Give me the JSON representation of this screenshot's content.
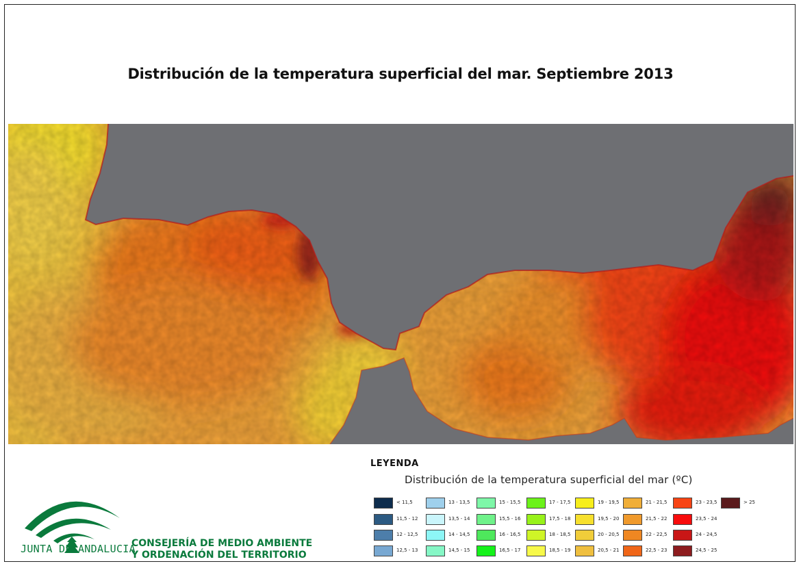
{
  "title": "Distribución de la temperatura superficial del mar. Septiembre 2013",
  "map": {
    "land_color": "#6e6f73",
    "layer": "temperatura superficial del mar",
    "unit": "ºC"
  },
  "legend": {
    "heading": "LEYENDA",
    "subtitle": "Distribución de la temperatura superficial del mar",
    "unit_label": "(ºC)",
    "classes": [
      {
        "label": "< 11,5",
        "color": "#0e2d4d"
      },
      {
        "label": "11,5 - 12",
        "color": "#2c5a82"
      },
      {
        "label": "12 - 12,5",
        "color": "#4d7eaa"
      },
      {
        "label": "12,5 - 13",
        "color": "#78a8d2"
      },
      {
        "label": "13 - 13,5",
        "color": "#9fd0ec"
      },
      {
        "label": "13,5 - 14",
        "color": "#caf5fb"
      },
      {
        "label": "14 - 14,5",
        "color": "#8df6f6"
      },
      {
        "label": "14,5 - 15",
        "color": "#86f7c6"
      },
      {
        "label": "15 - 15,5",
        "color": "#7ef7a8"
      },
      {
        "label": "15,5 - 16",
        "color": "#6ff28a"
      },
      {
        "label": "16 - 16,5",
        "color": "#4ee85c"
      },
      {
        "label": "16,5 - 17",
        "color": "#15f21a"
      },
      {
        "label": "17 - 17,5",
        "color": "#6cf21a"
      },
      {
        "label": "17,5 - 18",
        "color": "#98f21a"
      },
      {
        "label": "18 - 18,5",
        "color": "#cff527"
      },
      {
        "label": "18,5 - 19",
        "color": "#f7f94a"
      },
      {
        "label": "19 - 19,5",
        "color": "#f7ee1c"
      },
      {
        "label": "19,5 - 20",
        "color": "#f7e02e"
      },
      {
        "label": "20 - 20,5",
        "color": "#f1cd3a"
      },
      {
        "label": "20,5 - 21",
        "color": "#efbf3f"
      },
      {
        "label": "21 - 21,5",
        "color": "#f0ae38"
      },
      {
        "label": "21,5 - 22",
        "color": "#f09a2c"
      },
      {
        "label": "22 - 22,5",
        "color": "#ef8722"
      },
      {
        "label": "22,5 - 23",
        "color": "#f06618"
      },
      {
        "label": "23 - 23,5",
        "color": "#f74414"
      },
      {
        "label": "23,5 - 24",
        "color": "#f80c0c"
      },
      {
        "label": "24 - 24,5",
        "color": "#c91616"
      },
      {
        "label": "24,5 - 25",
        "color": "#8d1c1f"
      },
      {
        "label": "> 25",
        "color": "#5a1a1c"
      }
    ]
  },
  "organization": {
    "logo_text": "JUNTA DE ANDALUCIA",
    "department_line1": "CONSEJERÍA DE MEDIO AMBIENTE",
    "department_line2": "Y ORDENACIÓN DEL TERRITORIO",
    "brand_color": "#0a7a3c"
  }
}
